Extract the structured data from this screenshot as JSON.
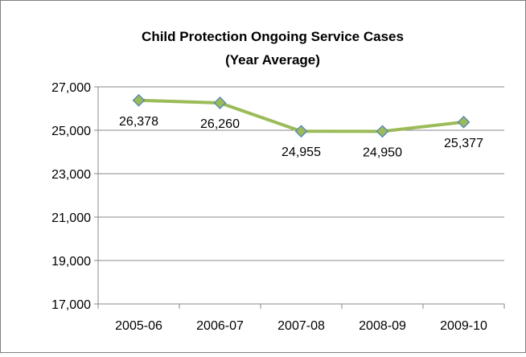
{
  "chart_data": {
    "type": "line",
    "title": "Child Protection Ongoing Service Cases",
    "subtitle": "(Year Average)",
    "categories": [
      "2005-06",
      "2006-07",
      "2007-08",
      "2008-09",
      "2009-10"
    ],
    "values": [
      26378,
      26260,
      24955,
      24950,
      25377
    ],
    "value_labels": [
      "26,378",
      "26,260",
      "24,955",
      "24,950",
      "25,377"
    ],
    "y_ticks": [
      27000,
      25000,
      23000,
      21000,
      19000,
      17000
    ],
    "y_tick_labels": [
      "27,000",
      "25,000",
      "23,000",
      "21,000",
      "19,000",
      "17,000"
    ],
    "ylim": [
      17000,
      27000
    ],
    "xlabel": "",
    "ylabel": "",
    "grid": true,
    "legend": "none",
    "colors": {
      "line": "#9bbb59",
      "marker_fill": "#9bbb59",
      "marker_stroke": "#4f81bd",
      "grid": "#888888",
      "border": "#7f7f7f",
      "axis": "#888888"
    }
  }
}
